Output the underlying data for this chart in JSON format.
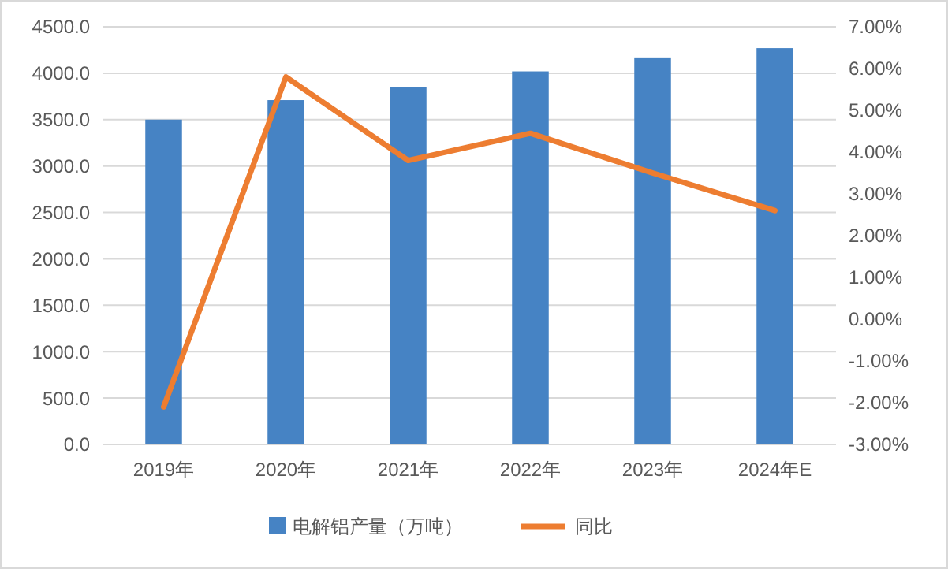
{
  "chart_data": {
    "type": "bar",
    "categories": [
      "2019年",
      "2020年",
      "2021年",
      "2022年",
      "2023年",
      "2024年E"
    ],
    "series": [
      {
        "name": "电解铝产量（万吨）",
        "color": "#4683c4",
        "values": [
          3500,
          3710,
          3850,
          4020,
          4170,
          4270
        ]
      },
      {
        "name": "同比",
        "type": "line",
        "axis": "y2",
        "color": "#ed7d31",
        "values": [
          -2.1,
          5.8,
          3.8,
          4.45,
          3.5,
          2.6
        ]
      }
    ],
    "ylim": [
      0,
      4500
    ],
    "yticks": [
      {
        "value": 0,
        "label": "0.0"
      },
      {
        "value": 500,
        "label": "500.0"
      },
      {
        "value": 1000,
        "label": "1000.0"
      },
      {
        "value": 1500,
        "label": "1500.0"
      },
      {
        "value": 2000,
        "label": "2000.0"
      },
      {
        "value": 2500,
        "label": "2500.0"
      },
      {
        "value": 3000,
        "label": "3000.0"
      },
      {
        "value": 3500,
        "label": "3500.0"
      },
      {
        "value": 4000,
        "label": "4000.0"
      },
      {
        "value": 4500,
        "label": "4500.0"
      }
    ],
    "y2lim": [
      -3,
      7
    ],
    "y2ticks": [
      {
        "value": -3,
        "label": "-3.00%"
      },
      {
        "value": -2,
        "label": "-2.00%"
      },
      {
        "value": -1,
        "label": "-1.00%"
      },
      {
        "value": 0,
        "label": "0.00%"
      },
      {
        "value": 1,
        "label": "1.00%"
      },
      {
        "value": 2,
        "label": "2.00%"
      },
      {
        "value": 3,
        "label": "3.00%"
      },
      {
        "value": 4,
        "label": "4.00%"
      },
      {
        "value": 5,
        "label": "5.00%"
      },
      {
        "value": 6,
        "label": "6.00%"
      },
      {
        "value": 7,
        "label": "7.00%"
      }
    ],
    "grid": "y",
    "legend": "bottom",
    "marker": "none"
  }
}
